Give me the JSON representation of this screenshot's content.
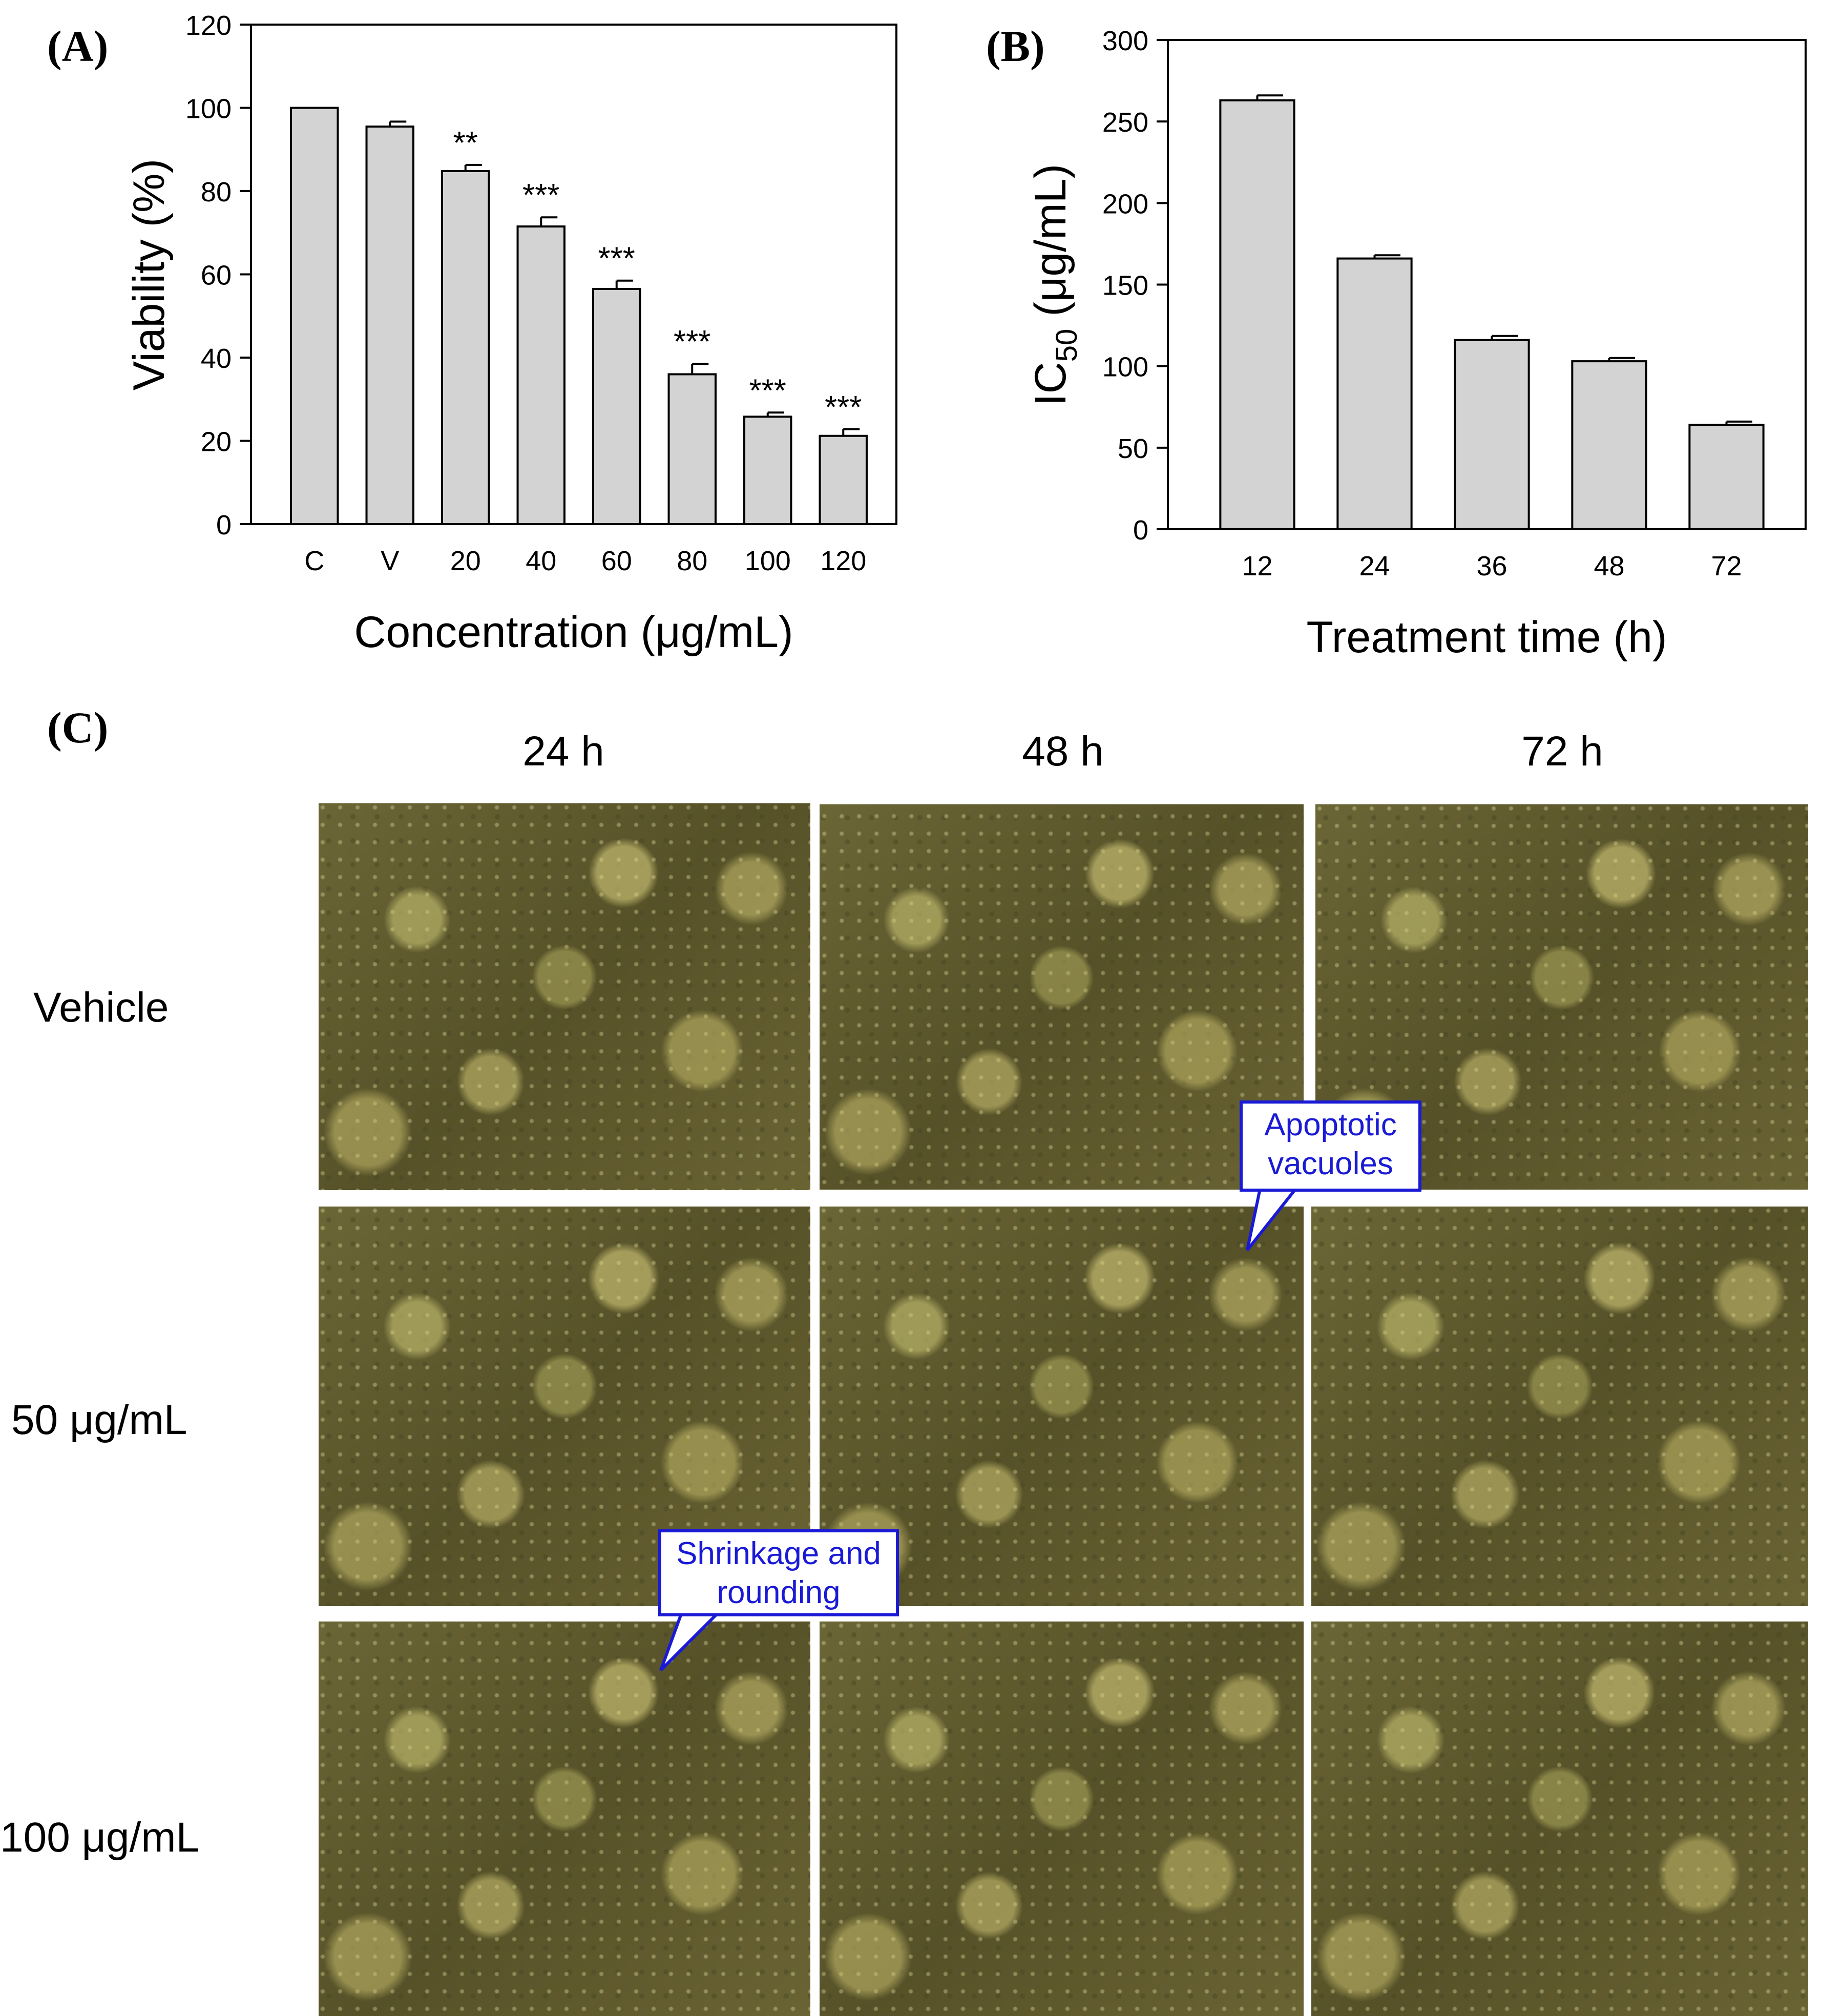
{
  "panels": {
    "a_label": "(A)",
    "b_label": "(B)",
    "c_label": "(C)"
  },
  "chart_data": [
    {
      "type": "bar",
      "panel": "A",
      "categories": [
        "C",
        "V",
        "20",
        "40",
        "60",
        "80",
        "100",
        "120"
      ],
      "values": [
        100,
        95.5,
        84.8,
        71.5,
        56.5,
        36,
        25.8,
        21.2
      ],
      "errors": [
        0,
        1.2,
        1.5,
        2.2,
        2.0,
        2.5,
        1.0,
        1.6
      ],
      "annotations": [
        "",
        "",
        "**",
        "***",
        "***",
        "***",
        "***",
        "***"
      ],
      "xlabel": "Concentration (μg/mL)",
      "ylabel": "Viability (%)",
      "ylim": [
        0,
        120
      ],
      "yticks": [
        0,
        20,
        40,
        60,
        80,
        100,
        120
      ],
      "bar_color": "#d3d3d3",
      "grid": false
    },
    {
      "type": "bar",
      "panel": "B",
      "categories": [
        "12",
        "24",
        "36",
        "48",
        "72"
      ],
      "values": [
        263,
        166,
        116,
        103,
        64
      ],
      "errors": [
        3,
        2,
        2.5,
        2,
        2
      ],
      "xlabel": "Treatment time (h)",
      "ylabel_main": "IC",
      "ylabel_sub": "50",
      "ylabel_rest": " (μg/mL)",
      "ylim": [
        0,
        300
      ],
      "yticks": [
        0,
        50,
        100,
        150,
        200,
        250,
        300
      ],
      "bar_color": "#d3d3d3",
      "grid": false
    }
  ],
  "micrographs": {
    "columns": [
      "24 h",
      "48 h",
      "72 h"
    ],
    "rows": [
      "Vehicle",
      "50 μg/mL",
      "100 μg/mL"
    ],
    "callouts": {
      "apoptotic": "Apoptotic vacuoles",
      "shrinkage": "Shrinkage and rounding"
    },
    "callout_color": "#1a1ad6"
  }
}
